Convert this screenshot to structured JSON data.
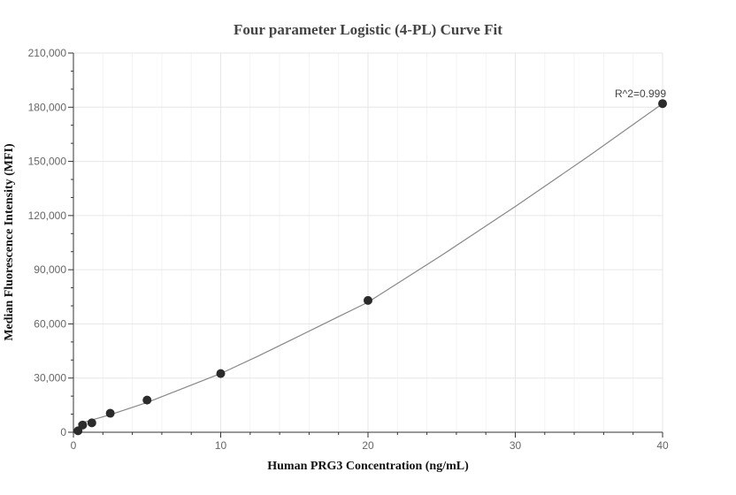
{
  "chart_data": {
    "type": "scatter",
    "title": "Four parameter Logistic (4-PL) Curve Fit",
    "xlabel": "Human PRG3 Concentration (ng/mL)",
    "ylabel": "Median Fluorescence Intensity (MFI)",
    "xlim": [
      0,
      40
    ],
    "ylim": [
      0,
      210000
    ],
    "x_ticks": [
      0,
      10,
      20,
      30,
      40
    ],
    "x_tick_labels": [
      "0",
      "10",
      "20",
      "30",
      "40"
    ],
    "y_ticks": [
      0,
      30000,
      60000,
      90000,
      120000,
      150000,
      180000,
      210000
    ],
    "y_tick_labels": [
      "0",
      "30,000",
      "60,000",
      "90,000",
      "120,000",
      "150,000",
      "180,000",
      "210,000"
    ],
    "grid": true,
    "legend": "none",
    "series": [
      {
        "kind": "points",
        "color": "#2b2b2b",
        "x": [
          0.3125,
          0.625,
          1.25,
          2.5,
          5,
          10,
          20,
          40
        ],
        "y": [
          800,
          4000,
          5200,
          10500,
          17800,
          32500,
          73000,
          182000
        ]
      },
      {
        "kind": "fit-curve",
        "color": "#888888",
        "x": [
          0.3125,
          1,
          2.5,
          5,
          7.5,
          10,
          12.5,
          15,
          17.5,
          20,
          25,
          30,
          35,
          40
        ],
        "y": [
          4700,
          6200,
          9700,
          16500,
          24500,
          32500,
          42000,
          52000,
          62000,
          72000,
          98000,
          125000,
          153000,
          182000
        ]
      }
    ],
    "annotations": [
      {
        "text": "R^2=0.999",
        "x": 40,
        "y": 182000
      }
    ]
  }
}
